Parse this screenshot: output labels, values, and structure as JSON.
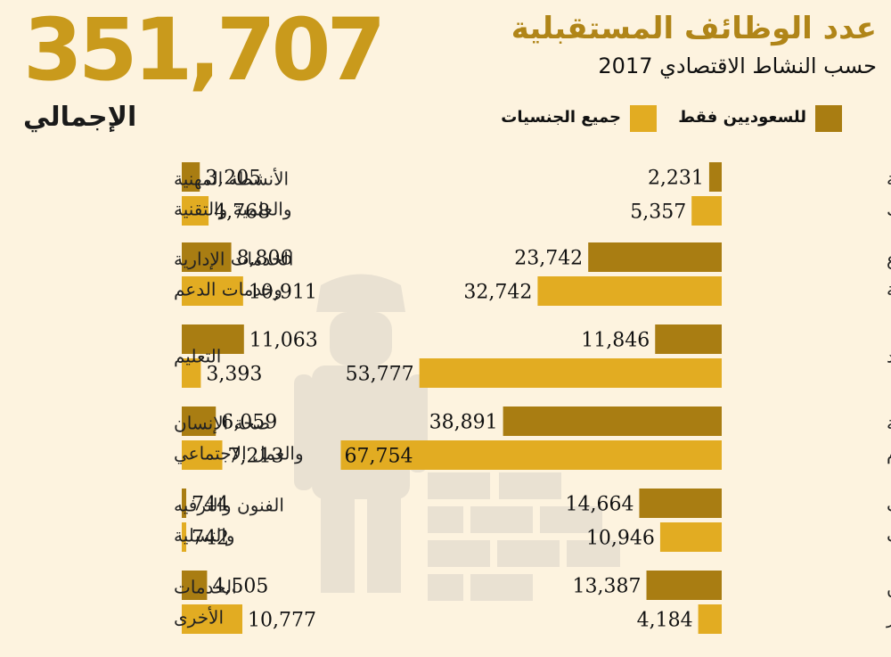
{
  "header": {
    "total": "351,707",
    "total_label": "الإجمالي",
    "title": "عدد الوظائف المستقبلية",
    "subtitle": "حسب النشاط الاقتصادي 2017"
  },
  "legend": {
    "saudi_label": "للسعوديين فقط",
    "all_label": "جميع الجنسيات"
  },
  "colors": {
    "saudi": "#a97d12",
    "all": "#e2ac22",
    "background": "#fdf3df",
    "title": "#b08518"
  },
  "chart_data": {
    "type": "bar",
    "orientation": "horizontal",
    "series_names": [
      "للسعوديين فقط",
      "جميع الجنسيات"
    ],
    "panels": [
      {
        "side": "right",
        "categories": [
          {
            "label": [
              "الزراعة والحراجة",
              "وصيد الأسماك"
            ],
            "saudi": 2231,
            "all": 5357,
            "saudi_text": "2,231",
            "all_text": "5,357"
          },
          {
            "label": [
              "قطاع",
              "الصناعة"
            ],
            "saudi": 23742,
            "all": 32742,
            "saudi_text": "23,742",
            "all_text": "32,742"
          },
          {
            "label": [
              "التشييد"
            ],
            "saudi": 11846,
            "all": 53777,
            "saudi_text": "11,846",
            "all_text": "53,777"
          },
          {
            "label": [
              "التجارة والإقامة",
              "والطعام"
            ],
            "saudi": 38891,
            "all": 67754,
            "saudi_text": "38,891",
            "all_text": "67,754"
          },
          {
            "label": [
              "النقل والمعلومات",
              "والاتصالات"
            ],
            "saudi": 14664,
            "all": 10946,
            "saudi_text": "14,664",
            "all_text": "10,946"
          },
          {
            "label": [
              "المال والتأمين",
              "والعقار"
            ],
            "saudi": 13387,
            "all": 4184,
            "saudi_text": "13,387",
            "all_text": "4,184"
          }
        ]
      },
      {
        "side": "left",
        "categories": [
          {
            "label": [
              "الأنشطة المهنية",
              "والعلمية والتقنية"
            ],
            "saudi": 3205,
            "all": 4768,
            "saudi_text": "3,205",
            "all_text": "4,768"
          },
          {
            "label": [
              "الخدمات الإدارية",
              "وخدمات الدعم"
            ],
            "saudi": 8806,
            "all": 10911,
            "saudi_text": "8,806",
            "all_text": "10,911"
          },
          {
            "label": [
              "التعليم"
            ],
            "saudi": 11063,
            "all": 3393,
            "saudi_text": "11,063",
            "all_text": "3,393"
          },
          {
            "label": [
              "صحة الإنسان",
              "والعمل الاجتماعي"
            ],
            "saudi": 6059,
            "all": 7213,
            "saudi_text": "6,059",
            "all_text": "7,213"
          },
          {
            "label": [
              "الفنون والترفيه",
              "والتسلية"
            ],
            "saudi": 744,
            "all": 742,
            "saudi_text": "744",
            "all_text": "742"
          },
          {
            "label": [
              "الخدمات",
              "الأخرى"
            ],
            "saudi": 4505,
            "all": 10777,
            "saudi_text": "4,505",
            "all_text": "10,777"
          }
        ]
      }
    ]
  }
}
